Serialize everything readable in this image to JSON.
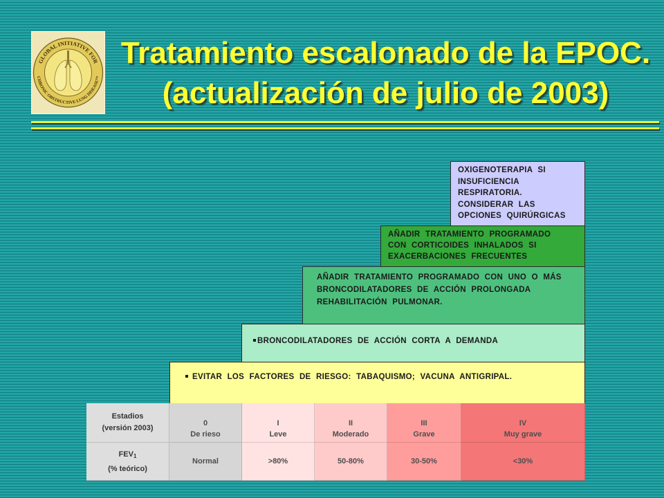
{
  "logo": {
    "ring_top": "GLOBAL INITIATIVE FOR",
    "ring_bottom": "CHRONIC OBSTRUCTIVE LUNG DISEASE™"
  },
  "title": {
    "line1": "Tratamiento escalonado de la EPOC.",
    "line2": "(actualización de julio de 2003)"
  },
  "steps": {
    "oxygen": {
      "lines": [
        "OXIGENOTERAPIA SI",
        "INSUFICIENCIA",
        "RESPIRATORIA.",
        "CONSIDERAR LAS",
        "OPCIONES QUIRÚRGICAS"
      ]
    },
    "inhaled_corticosteroids": {
      "lines": [
        "AÑADIR TRATAMIENTO PROGRAMADO",
        "CON CORTICOIDES INHALADOS SI",
        "EXACERBACIONES FRECUENTES"
      ]
    },
    "long_acting_bronchodilators": {
      "lines": [
        "AÑADIR TRATAMIENTO PROGRAMADO CON UNO O MÁS",
        "BRONCODILATADORES DE ACCIÓN PROLONGADA",
        "REHABILITACIÓN PULMONAR."
      ]
    },
    "short_acting_bronchodilators": {
      "lines": [
        "BRONCODILATADORES DE ACCIÓN CORTA A DEMANDA"
      ]
    },
    "risk_reduction": {
      "lines": [
        "EVITAR LOS FACTORES DE RIESGO: TABAQUISMO; VACUNA ANTIGRIPAL."
      ]
    }
  },
  "stages_table": {
    "stage_row": {
      "label": [
        "Estadios",
        "(versión 2003)"
      ],
      "stages": [
        {
          "numeral": "0",
          "name": "De rieso"
        },
        {
          "numeral": "I",
          "name": "Leve"
        },
        {
          "numeral": "II",
          "name": "Moderado"
        },
        {
          "numeral": "III",
          "name": "Grave"
        },
        {
          "numeral": "IV",
          "name": "Muy grave"
        }
      ]
    },
    "fev_row": {
      "label": "FEV",
      "label_subscript": "1",
      "label_unit": "(% teórico)",
      "values": [
        "Normal",
        ">80%",
        "50-80%",
        "30-50%",
        "<30%"
      ]
    }
  },
  "colors": {
    "title_text": "#ffff33",
    "rule": "#e6f23a",
    "step_oxygen": "#ccccff",
    "step_inhaled_corticosteroids": "#33aa3a",
    "step_long_acting": "#4ec07e",
    "step_short_acting": "#abecc9",
    "step_risk_reduction": "#ffff99",
    "table_label": "#dedede",
    "stage_0": "#d6d6d6",
    "stage_I": "#ffe3e3",
    "stage_II": "#ffcaca",
    "stage_III": "#ff9d9d",
    "stage_IV": "#f47676"
  }
}
